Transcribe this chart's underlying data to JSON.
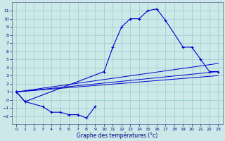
{
  "title": "Graphe des températures (°c)",
  "bg_color": "#cce8e8",
  "grid_color": "#99cccc",
  "line_color": "#0000cc",
  "ylim": [
    -3,
    12
  ],
  "xlim": [
    -0.5,
    23.5
  ],
  "yticks": [
    -2,
    -1,
    0,
    1,
    2,
    3,
    4,
    5,
    6,
    7,
    8,
    9,
    10,
    11
  ],
  "xticks": [
    0,
    1,
    2,
    3,
    4,
    5,
    6,
    7,
    8,
    9,
    10,
    11,
    12,
    13,
    14,
    15,
    16,
    17,
    18,
    19,
    20,
    21,
    22,
    23
  ],
  "curve_main_x": [
    0,
    1,
    10,
    11,
    12,
    13,
    14,
    15,
    16,
    17,
    19,
    20,
    21,
    22,
    23
  ],
  "curve_main_y": [
    1.0,
    -0.2,
    3.5,
    6.5,
    9.0,
    10.0,
    10.0,
    11.0,
    11.2,
    9.8,
    6.5,
    6.5,
    5.0,
    3.5,
    3.5
  ],
  "curve_low_x": [
    0,
    1,
    3,
    4,
    5,
    6,
    7,
    8,
    9
  ],
  "curve_low_y": [
    1.0,
    -0.2,
    -0.8,
    -1.5,
    -1.5,
    -1.8,
    -1.8,
    -2.2,
    -0.8
  ],
  "trend_lines": [
    {
      "x": [
        0,
        23
      ],
      "y": [
        1.0,
        3.5
      ]
    },
    {
      "x": [
        0,
        23
      ],
      "y": [
        1.0,
        4.5
      ]
    },
    {
      "x": [
        0,
        23
      ],
      "y": [
        1.0,
        3.0
      ]
    }
  ]
}
